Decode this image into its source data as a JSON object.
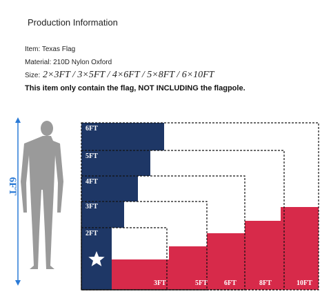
{
  "header": {
    "title": "Production Information"
  },
  "details": {
    "item": "Item: Texas Flag",
    "material": "Material: 210D Nylon Oxford",
    "size_label": "Size:",
    "size_value": "2×3FT / 3×5FT / 4×6FT / 5×8FT / 6×10FT",
    "note": "This item only contain the flag, NOT INCLUDING the flagpole."
  },
  "figure": {
    "height_label": "6FT",
    "flag_heights": [
      "6FT",
      "5FT",
      "4FT",
      "3FT",
      "2FT"
    ],
    "flag_widths": [
      "3FT",
      "5FT",
      "6FT",
      "8FT",
      "10FT"
    ]
  }
}
